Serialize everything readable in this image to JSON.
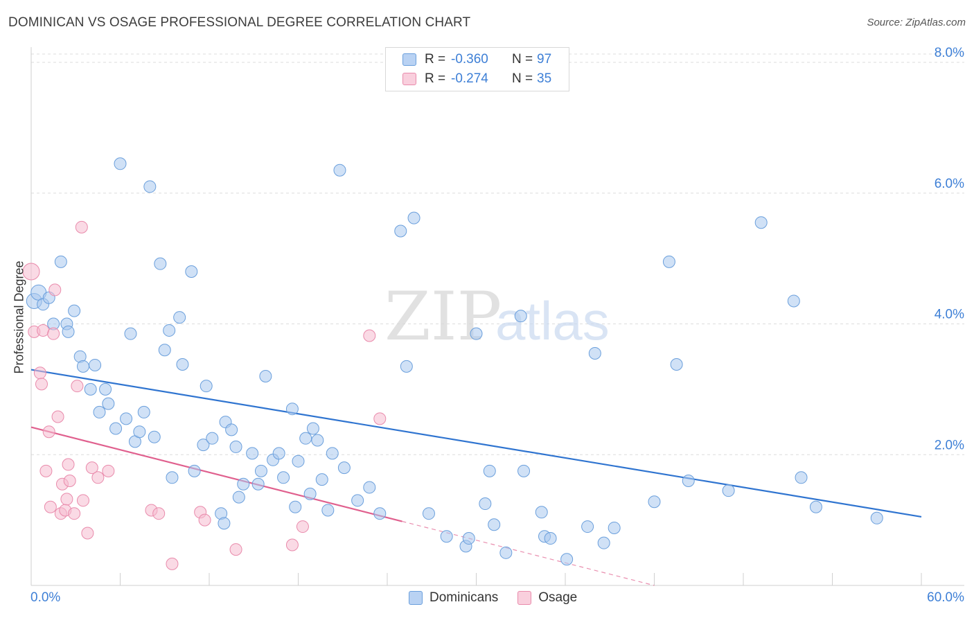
{
  "title": "DOMINICAN VS OSAGE PROFESSIONAL DEGREE CORRELATION CHART",
  "source": "Source: ZipAtlas.com",
  "watermark": {
    "zip": "ZIP",
    "atlas": "atlas"
  },
  "colors": {
    "blue_fill": "#a9c8ef",
    "blue_stroke": "#6a9fdc",
    "blue_line": "#2f74d0",
    "pink_fill": "#f6bcd0",
    "pink_stroke": "#e98aab",
    "pink_line": "#e0608e",
    "axis_text": "#3d7fd6",
    "grid": "#dcdcdc"
  },
  "legend": {
    "rows": [
      {
        "r_label": "R =",
        "r_value": "-0.360",
        "n_label": "N =",
        "n_value": "97"
      },
      {
        "r_label": "R =",
        "r_value": "-0.274",
        "n_label": "N =",
        "n_value": "35"
      }
    ]
  },
  "bottom_legend": {
    "dominicans": "Dominicans",
    "osage": "Osage"
  },
  "chart_data": {
    "type": "scatter",
    "title": "DOMINICAN VS OSAGE PROFESSIONAL DEGREE CORRELATION CHART",
    "xlabel": "",
    "ylabel": "Professional Degree",
    "xlim": [
      0,
      60
    ],
    "ylim": [
      0,
      8
    ],
    "x_tick_labels": [
      "0.0%",
      "60.0%"
    ],
    "y_ticks": [
      2,
      4,
      6,
      8
    ],
    "y_tick_labels": [
      "2.0%",
      "4.0%",
      "6.0%",
      "8.0%"
    ],
    "series": [
      {
        "name": "Dominicans",
        "trendline": {
          "x": [
            0,
            60
          ],
          "y": [
            3.3,
            1.05
          ]
        },
        "points": [
          [
            0.2,
            4.35
          ],
          [
            0.5,
            4.48
          ],
          [
            0.8,
            4.3
          ],
          [
            1.2,
            4.4
          ],
          [
            2.0,
            4.95
          ],
          [
            1.5,
            4.0
          ],
          [
            2.4,
            4.0
          ],
          [
            2.5,
            3.88
          ],
          [
            2.9,
            4.2
          ],
          [
            3.3,
            3.5
          ],
          [
            3.5,
            3.35
          ],
          [
            4.0,
            3.0
          ],
          [
            4.3,
            3.37
          ],
          [
            4.6,
            2.65
          ],
          [
            5.0,
            3.0
          ],
          [
            5.2,
            2.78
          ],
          [
            5.7,
            2.4
          ],
          [
            6.0,
            6.45
          ],
          [
            6.4,
            2.55
          ],
          [
            6.7,
            3.85
          ],
          [
            7.0,
            2.2
          ],
          [
            7.3,
            2.35
          ],
          [
            7.6,
            2.65
          ],
          [
            8.0,
            6.1
          ],
          [
            8.3,
            2.27
          ],
          [
            8.7,
            4.92
          ],
          [
            9.0,
            3.6
          ],
          [
            9.3,
            3.9
          ],
          [
            9.5,
            1.65
          ],
          [
            10.0,
            4.1
          ],
          [
            10.2,
            3.38
          ],
          [
            10.8,
            4.8
          ],
          [
            11.0,
            1.75
          ],
          [
            11.6,
            2.15
          ],
          [
            11.8,
            3.05
          ],
          [
            12.2,
            2.25
          ],
          [
            12.8,
            1.1
          ],
          [
            13.0,
            0.95
          ],
          [
            13.1,
            2.5
          ],
          [
            13.5,
            2.38
          ],
          [
            13.8,
            2.12
          ],
          [
            14.0,
            1.35
          ],
          [
            14.3,
            1.55
          ],
          [
            14.9,
            2.02
          ],
          [
            15.3,
            1.55
          ],
          [
            15.5,
            1.75
          ],
          [
            15.8,
            3.2
          ],
          [
            16.3,
            1.92
          ],
          [
            16.7,
            2.02
          ],
          [
            17.0,
            1.65
          ],
          [
            17.6,
            2.7
          ],
          [
            17.8,
            1.2
          ],
          [
            18.0,
            1.9
          ],
          [
            18.5,
            2.25
          ],
          [
            18.8,
            1.4
          ],
          [
            19.0,
            2.4
          ],
          [
            19.3,
            2.22
          ],
          [
            19.6,
            1.62
          ],
          [
            20.0,
            1.15
          ],
          [
            20.3,
            2.02
          ],
          [
            20.8,
            6.35
          ],
          [
            21.1,
            1.8
          ],
          [
            22.0,
            1.3
          ],
          [
            22.8,
            1.5
          ],
          [
            23.5,
            1.1
          ],
          [
            24.9,
            5.42
          ],
          [
            25.3,
            3.35
          ],
          [
            25.8,
            5.62
          ],
          [
            26.8,
            1.1
          ],
          [
            28.0,
            0.75
          ],
          [
            29.3,
            0.6
          ],
          [
            29.5,
            0.72
          ],
          [
            30.0,
            3.85
          ],
          [
            30.6,
            1.25
          ],
          [
            30.9,
            1.75
          ],
          [
            31.2,
            0.93
          ],
          [
            32.0,
            0.5
          ],
          [
            33.0,
            4.12
          ],
          [
            33.2,
            1.75
          ],
          [
            34.4,
            1.12
          ],
          [
            34.6,
            0.75
          ],
          [
            35.0,
            0.72
          ],
          [
            36.1,
            0.4
          ],
          [
            37.5,
            0.9
          ],
          [
            38.0,
            3.55
          ],
          [
            38.6,
            0.65
          ],
          [
            39.3,
            0.88
          ],
          [
            42.0,
            1.28
          ],
          [
            43.0,
            4.95
          ],
          [
            43.5,
            3.38
          ],
          [
            44.3,
            1.6
          ],
          [
            47.0,
            1.45
          ],
          [
            49.2,
            5.55
          ],
          [
            51.4,
            4.35
          ],
          [
            51.9,
            1.65
          ],
          [
            52.9,
            1.2
          ],
          [
            57.0,
            1.03
          ]
        ]
      },
      {
        "name": "Osage",
        "trendline": {
          "x": [
            0,
            25.0
          ],
          "y": [
            2.42,
            0.98
          ],
          "dashed_to": [
            42.0,
            0.0
          ]
        },
        "points": [
          [
            0.0,
            4.8
          ],
          [
            0.2,
            3.88
          ],
          [
            0.6,
            3.25
          ],
          [
            0.7,
            3.08
          ],
          [
            0.8,
            3.9
          ],
          [
            1.0,
            1.75
          ],
          [
            1.2,
            2.35
          ],
          [
            1.3,
            1.2
          ],
          [
            1.5,
            3.85
          ],
          [
            1.6,
            4.52
          ],
          [
            1.8,
            2.58
          ],
          [
            2.0,
            1.1
          ],
          [
            2.1,
            1.55
          ],
          [
            2.3,
            1.15
          ],
          [
            2.4,
            1.32
          ],
          [
            2.5,
            1.85
          ],
          [
            2.6,
            1.6
          ],
          [
            2.9,
            1.1
          ],
          [
            3.1,
            3.05
          ],
          [
            3.4,
            5.48
          ],
          [
            3.5,
            1.3
          ],
          [
            3.8,
            0.8
          ],
          [
            4.1,
            1.8
          ],
          [
            4.5,
            1.65
          ],
          [
            5.2,
            1.75
          ],
          [
            8.1,
            1.15
          ],
          [
            8.6,
            1.1
          ],
          [
            9.5,
            0.33
          ],
          [
            11.4,
            1.12
          ],
          [
            11.7,
            1.0
          ],
          [
            13.8,
            0.55
          ],
          [
            17.6,
            0.62
          ],
          [
            18.3,
            0.9
          ],
          [
            22.8,
            3.82
          ],
          [
            23.5,
            2.55
          ]
        ]
      }
    ]
  }
}
